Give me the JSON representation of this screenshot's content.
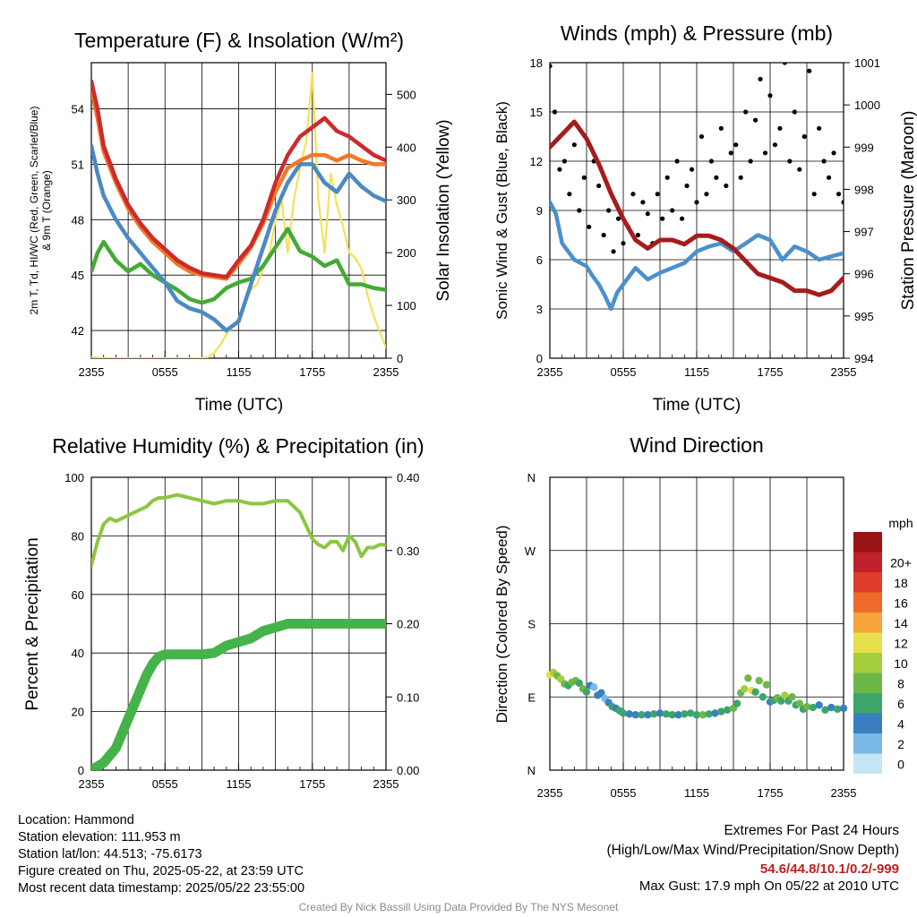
{
  "panels": {
    "temp": {
      "title": "Temperature (F) & Insolation (W/m²)",
      "xlabel": "Time (UTC)",
      "ylabel_left_line1": "2m T, Td, HI/WC (Red, Green, Scarlet/Blue)",
      "ylabel_left_line2": "& 9m T (Orange)",
      "ylabel_right": "Solar Insolation (Yellow)"
    },
    "wind": {
      "title": "Winds (mph) & Pressure (mb)",
      "xlabel": "Time (UTC)",
      "ylabel_left": "Sonic Wind & Gust (Blue, Black)",
      "ylabel_right": "Station Pressure (Maroon)"
    },
    "rh": {
      "title": "Relative Humidity (%) & Precipitation (in)",
      "ylabel_left": "Percent & Precipitation"
    },
    "dir": {
      "title": "Wind Direction",
      "ylabel_left": "Direction (Colored By Speed)",
      "legend_unit": "mph"
    }
  },
  "chart_data": [
    {
      "id": "temp",
      "type": "line",
      "title": "Temperature (F) & Insolation (W/m²)",
      "xlabel": "Time (UTC)",
      "x_ticks": [
        "2355",
        "0555",
        "1155",
        "1755",
        "2355"
      ],
      "xlim_hours": [
        0,
        24
      ],
      "y_left_ticks": [
        42,
        45,
        48,
        51,
        54
      ],
      "ylim_left": [
        40.5,
        56.5
      ],
      "y_right_ticks": [
        0,
        100,
        200,
        300,
        400,
        500
      ],
      "ylim_right": [
        0,
        560
      ],
      "series": [
        {
          "color": "#cc2b2b",
          "axis": "left",
          "x": [
            0,
            0.5,
            1,
            2,
            3,
            4,
            5,
            6,
            7,
            8,
            9,
            10,
            11,
            12,
            13,
            14,
            15,
            16,
            17,
            18,
            19,
            20,
            21,
            22,
            23,
            24
          ],
          "y": [
            55.5,
            54.0,
            52.0,
            50.2,
            48.8,
            47.8,
            47.0,
            46.4,
            45.8,
            45.4,
            45.1,
            45.0,
            44.9,
            45.8,
            46.6,
            48.0,
            50.0,
            51.5,
            52.5,
            53.0,
            53.5,
            52.8,
            52.5,
            52.0,
            51.5,
            51.2
          ]
        },
        {
          "color": "#f07a2a",
          "axis": "left",
          "x": [
            0,
            0.5,
            1,
            2,
            3,
            4,
            5,
            6,
            7,
            8,
            9,
            10,
            11,
            12,
            13,
            14,
            15,
            16,
            17,
            18,
            19,
            20,
            21,
            22,
            23,
            24
          ],
          "y": [
            55.0,
            53.5,
            51.7,
            50.0,
            48.6,
            47.6,
            46.8,
            46.2,
            45.6,
            45.2,
            45.0,
            44.9,
            44.8,
            45.6,
            46.5,
            47.8,
            49.5,
            50.8,
            51.2,
            51.5,
            51.5,
            51.2,
            51.5,
            51.2,
            51.0,
            51.0
          ]
        },
        {
          "color": "#4a8ac4",
          "axis": "left",
          "x": [
            0,
            0.5,
            1,
            2,
            3,
            4,
            5,
            6,
            7,
            8,
            9,
            10,
            11,
            12,
            13,
            14,
            15,
            16,
            17,
            18,
            19,
            20,
            21,
            22,
            23,
            24
          ],
          "y": [
            52.0,
            50.5,
            49.3,
            48.0,
            47.0,
            46.2,
            45.4,
            44.6,
            43.6,
            43.2,
            43.0,
            42.6,
            42.0,
            42.5,
            44.5,
            46.5,
            48.5,
            50.0,
            51.0,
            51.0,
            50.0,
            49.5,
            50.5,
            49.8,
            49.3,
            49.0
          ]
        },
        {
          "color": "#44aa33",
          "axis": "left",
          "x": [
            0,
            0.5,
            1,
            2,
            3,
            4,
            5,
            6,
            7,
            8,
            9,
            10,
            11,
            12,
            13,
            14,
            15,
            16,
            17,
            18,
            19,
            20,
            21,
            22,
            23,
            24
          ],
          "y": [
            45.2,
            46.2,
            46.8,
            45.8,
            45.2,
            45.6,
            45.0,
            44.6,
            44.2,
            43.7,
            43.5,
            43.7,
            44.3,
            44.6,
            44.8,
            45.5,
            46.5,
            47.5,
            46.3,
            46.0,
            45.5,
            45.8,
            44.5,
            44.5,
            44.3,
            44.2
          ]
        },
        {
          "color": "#f5e05a",
          "axis": "right",
          "x": [
            0,
            1,
            2,
            3,
            4,
            5,
            6,
            7,
            8,
            9,
            9.5,
            10,
            10.5,
            11,
            11.5,
            12,
            12.5,
            13,
            13.5,
            14,
            14.5,
            15,
            15.5,
            16,
            16.5,
            17,
            17.5,
            18,
            18.5,
            19,
            19.5,
            20,
            20.5,
            21,
            21.5,
            22,
            22.5,
            23,
            23.5,
            24
          ],
          "y": [
            2,
            0,
            0,
            0,
            0,
            0,
            0,
            0,
            0,
            0,
            2,
            10,
            25,
            45,
            60,
            75,
            110,
            130,
            140,
            170,
            200,
            260,
            300,
            200,
            300,
            360,
            410,
            540,
            300,
            200,
            350,
            290,
            250,
            200,
            190,
            170,
            120,
            80,
            50,
            20
          ]
        }
      ]
    },
    {
      "id": "wind",
      "type": "line",
      "title": "Winds (mph) & Pressure (mb)",
      "xlabel": "Time (UTC)",
      "x_ticks": [
        "2355",
        "0555",
        "1155",
        "1755",
        "2355"
      ],
      "xlim_hours": [
        0,
        24
      ],
      "y_left_ticks": [
        0,
        3,
        6,
        9,
        12,
        15,
        18
      ],
      "ylim_left": [
        0,
        18
      ],
      "y_right_ticks": [
        994,
        995,
        996,
        997,
        998,
        999,
        1000,
        1001
      ],
      "ylim_right": [
        994,
        1001
      ],
      "series": [
        {
          "color": "#4a90cc",
          "axis": "left",
          "x": [
            0,
            0.5,
            1,
            1.5,
            2,
            2.5,
            3,
            3.5,
            4,
            4.5,
            5,
            5.5,
            6,
            7,
            8,
            9,
            10,
            11,
            12,
            13,
            14,
            15,
            16,
            17,
            18,
            19,
            20,
            21,
            22,
            23,
            24
          ],
          "y": [
            9.5,
            8.8,
            7.0,
            6.5,
            6.0,
            5.8,
            5.6,
            5.0,
            4.5,
            3.8,
            3.0,
            4.0,
            4.5,
            5.5,
            4.8,
            5.2,
            5.5,
            5.8,
            6.5,
            6.8,
            7.0,
            6.5,
            7.0,
            7.5,
            7.2,
            6.0,
            6.8,
            6.5,
            6.0,
            6.2,
            6.4
          ]
        },
        {
          "color": "#a61c1c",
          "axis": "right",
          "x": [
            0,
            1,
            2,
            3,
            4,
            5,
            6,
            7,
            8,
            9,
            10,
            11,
            12,
            13,
            14,
            15,
            16,
            17,
            18,
            19,
            20,
            21,
            22,
            23,
            24
          ],
          "y": [
            999.0,
            999.3,
            999.6,
            999.2,
            998.6,
            997.9,
            997.3,
            996.8,
            996.6,
            996.8,
            996.8,
            996.7,
            996.9,
            996.9,
            996.8,
            996.6,
            996.3,
            996.0,
            995.9,
            995.8,
            995.6,
            995.6,
            995.5,
            995.6,
            995.9
          ]
        }
      ],
      "gusts": {
        "color": "#000000",
        "x": [
          0,
          0.4,
          0.8,
          1.2,
          1.6,
          2.0,
          2.4,
          2.8,
          3.2,
          3.6,
          4.0,
          4.4,
          4.8,
          5.2,
          5.6,
          6.0,
          6.4,
          6.8,
          7.2,
          7.6,
          8.0,
          8.4,
          8.8,
          9.2,
          9.6,
          10.0,
          10.4,
          10.8,
          11.2,
          11.6,
          12.0,
          12.4,
          12.8,
          13.2,
          13.6,
          14.0,
          14.4,
          14.8,
          15.2,
          15.6,
          16.0,
          16.4,
          16.8,
          17.2,
          17.6,
          18.0,
          18.4,
          18.8,
          19.2,
          19.6,
          20.0,
          20.4,
          20.8,
          21.2,
          21.6,
          22.0,
          22.4,
          22.8,
          23.2,
          23.6,
          24.0
        ],
        "y": [
          17.8,
          15.0,
          11.5,
          12.0,
          10.0,
          13.0,
          9.0,
          11.0,
          8.0,
          12.0,
          10.5,
          7.5,
          9.0,
          6.5,
          8.5,
          7.0,
          8.0,
          10.0,
          7.5,
          9.5,
          8.8,
          7.0,
          10.0,
          8.5,
          11.0,
          9.0,
          12.0,
          8.5,
          10.5,
          11.5,
          9.5,
          13.5,
          10.0,
          12.0,
          11.0,
          14.0,
          10.5,
          12.5,
          13.0,
          11.0,
          15.0,
          12.0,
          14.5,
          17.0,
          12.5,
          16.0,
          13.0,
          14.0,
          18.0,
          12.0,
          15.0,
          11.5,
          13.5,
          17.5,
          10.0,
          14.0,
          12.0,
          11.0,
          12.5,
          10.0,
          9.5
        ]
      }
    },
    {
      "id": "rh",
      "type": "line",
      "title": "Relative Humidity (%) & Precipitation (in)",
      "x_ticks": [
        "2355",
        "0555",
        "1155",
        "1755",
        "2355"
      ],
      "xlim_hours": [
        0,
        24
      ],
      "y_left_ticks": [
        0,
        20,
        40,
        60,
        80,
        100
      ],
      "ylim_left": [
        0,
        100
      ],
      "y_right_ticks": [
        "0.00",
        "0.10",
        "0.20",
        "0.30",
        "0.40"
      ],
      "ylim_right": [
        0,
        0.4
      ],
      "series": [
        {
          "color": "#8cc63f",
          "axis": "left",
          "x": [
            0,
            0.5,
            1,
            1.5,
            2,
            2.5,
            3,
            3.5,
            4,
            4.5,
            5,
            5.5,
            6,
            7,
            8,
            9,
            10,
            11,
            12,
            13,
            14,
            15,
            16,
            17,
            18,
            18.5,
            19,
            19.5,
            20,
            20.5,
            21,
            21.5,
            22,
            22.5,
            23,
            23.5,
            24
          ],
          "y": [
            70,
            78,
            84,
            86,
            85,
            86,
            87,
            88,
            89,
            90,
            92,
            93,
            93,
            94,
            93,
            92,
            91,
            92,
            92,
            91,
            91,
            92,
            92,
            88,
            79,
            77,
            76,
            78,
            78,
            75,
            80,
            78,
            73,
            76,
            76,
            77,
            77
          ]
        },
        {
          "color": "#44b34a",
          "axis": "right",
          "x": [
            0,
            0.5,
            1,
            1.5,
            2,
            2.5,
            3,
            3.5,
            4,
            4.5,
            5,
            5.5,
            6,
            7,
            8,
            9,
            10,
            11,
            12,
            13,
            14,
            15,
            16,
            17,
            18,
            19,
            20,
            21,
            22,
            23,
            24
          ],
          "y": [
            0,
            0.005,
            0.01,
            0.02,
            0.03,
            0.05,
            0.07,
            0.09,
            0.11,
            0.13,
            0.145,
            0.155,
            0.158,
            0.158,
            0.158,
            0.158,
            0.16,
            0.17,
            0.175,
            0.18,
            0.19,
            0.195,
            0.2,
            0.2,
            0.2,
            0.2,
            0.2,
            0.2,
            0.2,
            0.2,
            0.2
          ]
        }
      ]
    },
    {
      "id": "dir",
      "type": "scatter",
      "title": "Wind Direction",
      "ylabel": "Direction (Colored By Speed)",
      "x_ticks": [
        "2355",
        "0555",
        "1155",
        "1755",
        "2355"
      ],
      "xlim_hours": [
        0,
        24
      ],
      "y_ticks": [
        "N",
        "E",
        "S",
        "W",
        "N"
      ],
      "ylim_degrees": [
        0,
        360
      ],
      "color_scale": {
        "unit": "mph",
        "labels": [
          "0",
          "2",
          "4",
          "6",
          "8",
          "10",
          "12",
          "14",
          "16",
          "18",
          "20+"
        ],
        "colors": [
          "#c4e6f7",
          "#7ab8e6",
          "#3a7fc0",
          "#3da56a",
          "#6db74a",
          "#a6cd3b",
          "#e6de4c",
          "#f6a33c",
          "#ef6a2a",
          "#e03b2b",
          "#c0202a",
          "#9a1414"
        ]
      },
      "points": {
        "x": [
          0,
          0.3,
          0.6,
          0.9,
          1.2,
          1.5,
          1.8,
          2.1,
          2.4,
          2.7,
          3.0,
          3.3,
          3.6,
          3.9,
          4.2,
          4.5,
          4.8,
          5.1,
          5.4,
          5.7,
          6.0,
          6.5,
          7.0,
          7.5,
          8.0,
          8.5,
          9.0,
          9.5,
          10.0,
          10.5,
          11.0,
          11.5,
          12.0,
          12.5,
          13.0,
          13.5,
          14.0,
          14.5,
          15.0,
          15.3,
          15.6,
          15.9,
          16.2,
          16.5,
          16.8,
          17.1,
          17.4,
          17.7,
          18.0,
          18.3,
          18.6,
          18.9,
          19.2,
          19.5,
          19.8,
          20.1,
          20.4,
          20.7,
          21.0,
          21.5,
          22.0,
          22.5,
          23.0,
          23.5,
          24.0
        ],
        "dir_deg": [
          117,
          120,
          116,
          112,
          106,
          104,
          108,
          110,
          107,
          100,
          96,
          104,
          102,
          92,
          95,
          88,
          83,
          78,
          76,
          73,
          70,
          69,
          68,
          68,
          68,
          69,
          70,
          69,
          68,
          68,
          69,
          70,
          68,
          68,
          69,
          70,
          72,
          74,
          76,
          82,
          95,
          100,
          113,
          98,
          96,
          110,
          90,
          105,
          84,
          86,
          89,
          85,
          92,
          85,
          90,
          80,
          82,
          75,
          78,
          77,
          80,
          74,
          77,
          75,
          76
        ],
        "speed_cat": [
          6,
          5,
          4,
          5,
          4,
          3,
          4,
          4,
          3,
          4,
          3,
          2,
          1,
          2,
          2,
          1,
          2,
          3,
          2,
          3,
          3,
          2,
          2,
          3,
          2,
          3,
          2,
          3,
          3,
          2,
          3,
          3,
          3,
          4,
          3,
          2,
          3,
          3,
          4,
          3,
          4,
          5,
          4,
          6,
          3,
          4,
          3,
          4,
          2,
          3,
          4,
          3,
          5,
          3,
          4,
          3,
          4,
          3,
          4,
          3,
          2,
          3,
          2,
          3,
          2
        ]
      }
    }
  ],
  "info": {
    "location": "Location: Hammond",
    "elevation": "Station elevation: 111.953 m",
    "latlon": "Station lat/lon: 44.513; -75.6173",
    "created": "Figure created on Thu, 2025-05-22, at 23:59 UTC",
    "recent": "Most recent data timestamp: 2025/05/22 23:55:00"
  },
  "extremes": {
    "line1": "Extremes For Past 24 Hours",
    "line2": "(High/Low/Max Wind/Precipitation/Snow Depth)",
    "values": "54.6/44.8/10.1/0.2/-999",
    "gust": "Max Gust: 17.9 mph On 05/22 at 2010 UTC"
  },
  "footer": "Created By Nick Bassill Using Data Provided By The NYS Mesonet"
}
